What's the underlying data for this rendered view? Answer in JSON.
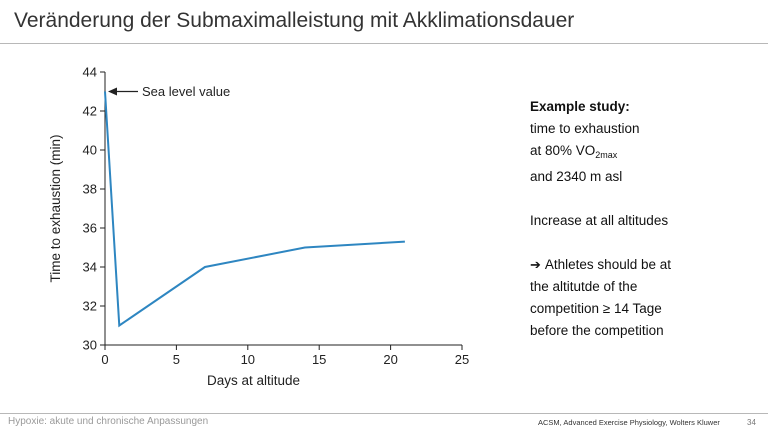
{
  "slide": {
    "title": "Veränderung der Submaximalleistung mit Akklimationsdauer",
    "footer_left": "Hypoxie: akute und chronische Anpassungen",
    "citation": "ACSM, Advanced Exercise Physiology, Wolters Kluwer",
    "page_number": "34"
  },
  "side_text": {
    "heading": "Example study:",
    "line1": "time to exhaustion",
    "line2_prefix": "at 80% VO",
    "line2_sub": "2max",
    "line3": "and 2340 m asl",
    "line4": "Increase at all altitudes",
    "bullet_icon": "right-arrow-icon",
    "bullet_line1": "Athletes should be at",
    "bullet_line2": "the altitutde of the",
    "bullet_line3": "competition ≥ 14 Tage",
    "bullet_line4": "before the competition"
  },
  "chart_data": {
    "type": "line",
    "xlabel": "Days at altitude",
    "ylabel": "Time to exhaustion (min)",
    "xlim": [
      0,
      25
    ],
    "ylim": [
      30,
      44
    ],
    "x_ticks": [
      0,
      5,
      10,
      15,
      20,
      25
    ],
    "y_ticks": [
      30,
      32,
      34,
      36,
      38,
      40,
      42,
      44
    ],
    "grid": false,
    "series": [
      {
        "x": [
          0,
          1,
          7,
          14,
          21
        ],
        "y": [
          43,
          31,
          34,
          35,
          35.3
        ],
        "color": "#2e86c1"
      }
    ],
    "annotation": {
      "text": "Sea level value",
      "x": 0,
      "y": 43,
      "arrow": true
    }
  }
}
